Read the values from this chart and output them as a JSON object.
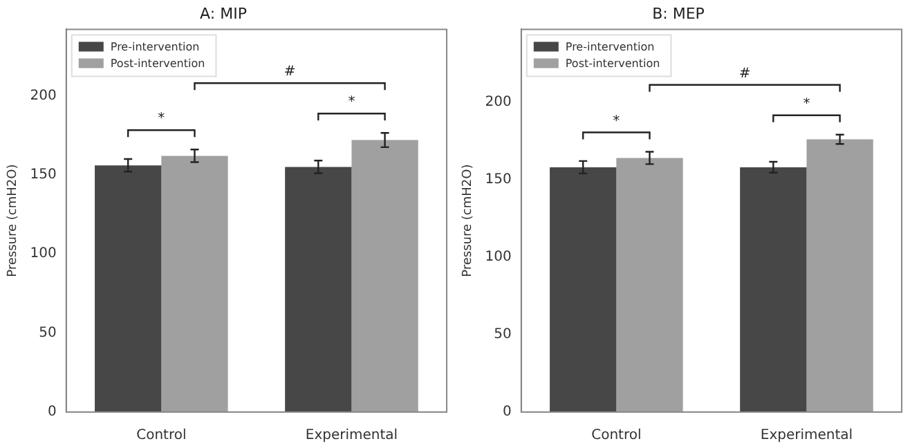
{
  "chart_data": [
    {
      "type": "bar",
      "title": "A: MIP",
      "ylabel": "Pressure (cmH2O)",
      "categories": [
        "Control",
        "Experimental"
      ],
      "series": [
        {
          "name": "Pre-intervention",
          "color": "#474747",
          "values": [
            156,
            155
          ],
          "errors": [
            4,
            4
          ]
        },
        {
          "name": "Post-intervention",
          "color": "#a0a0a0",
          "values": [
            162,
            172
          ],
          "errors": [
            4,
            4.5
          ]
        }
      ],
      "ylim": [
        0,
        242
      ],
      "yticks": [
        0,
        50,
        100,
        150,
        200
      ],
      "grid": false,
      "legend": "top left",
      "annotations": [
        "*",
        "*",
        "#"
      ]
    },
    {
      "type": "bar",
      "title": "B: MEP",
      "ylabel": "Pressure (cmH2O)",
      "categories": [
        "Control",
        "Experimental"
      ],
      "series": [
        {
          "name": "Pre-intervention",
          "color": "#474747",
          "values": [
            158,
            158
          ],
          "errors": [
            4,
            3.5
          ]
        },
        {
          "name": "Post-intervention",
          "color": "#a0a0a0",
          "values": [
            164,
            176
          ],
          "errors": [
            4,
            3
          ]
        }
      ],
      "ylim": [
        0,
        247
      ],
      "yticks": [
        0,
        50,
        100,
        150,
        200
      ],
      "grid": false,
      "legend": "top left",
      "annotations": [
        "*",
        "*",
        "#"
      ]
    }
  ]
}
